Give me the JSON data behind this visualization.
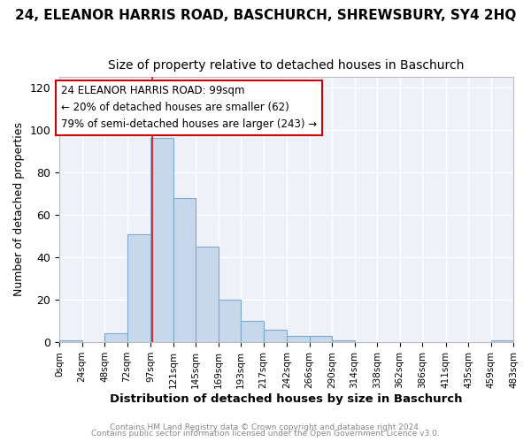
{
  "title": "24, ELEANOR HARRIS ROAD, BASCHURCH, SHREWSBURY, SY4 2HQ",
  "subtitle": "Size of property relative to detached houses in Baschurch",
  "xlabel": "Distribution of detached houses by size in Baschurch",
  "ylabel": "Number of detached properties",
  "bar_color": "#c8d8ec",
  "bar_edge_color": "#7aaac8",
  "bin_edges": [
    0,
    24,
    48,
    72,
    97,
    121,
    145,
    169,
    193,
    217,
    242,
    266,
    290,
    314,
    338,
    362,
    386,
    411,
    435,
    459,
    483
  ],
  "bar_heights": [
    1,
    0,
    4,
    51,
    96,
    68,
    45,
    20,
    10,
    6,
    3,
    3,
    1,
    0,
    0,
    0,
    0,
    0,
    0,
    1
  ],
  "tick_labels": [
    "0sqm",
    "24sqm",
    "48sqm",
    "72sqm",
    "97sqm",
    "121sqm",
    "145sqm",
    "169sqm",
    "193sqm",
    "217sqm",
    "242sqm",
    "266sqm",
    "290sqm",
    "314sqm",
    "338sqm",
    "362sqm",
    "386sqm",
    "411sqm",
    "435sqm",
    "459sqm",
    "483sqm"
  ],
  "ylim": [
    0,
    125
  ],
  "yticks": [
    0,
    20,
    40,
    60,
    80,
    100,
    120
  ],
  "red_line_x": 99,
  "annotation_title": "24 ELEANOR HARRIS ROAD: 99sqm",
  "annotation_line1": "← 20% of detached houses are smaller (62)",
  "annotation_line2": "79% of semi-detached houses are larger (243) →",
  "annotation_box_color": "#ffffff",
  "annotation_box_edge_color": "#cc0000",
  "footer1": "Contains HM Land Registry data © Crown copyright and database right 2024.",
  "footer2": "Contains public sector information licensed under the Open Government Licence v3.0.",
  "background_color": "#ffffff",
  "plot_bg_color": "#eef2f8",
  "grid_color": "#ffffff",
  "title_fontsize": 11,
  "subtitle_fontsize": 10
}
